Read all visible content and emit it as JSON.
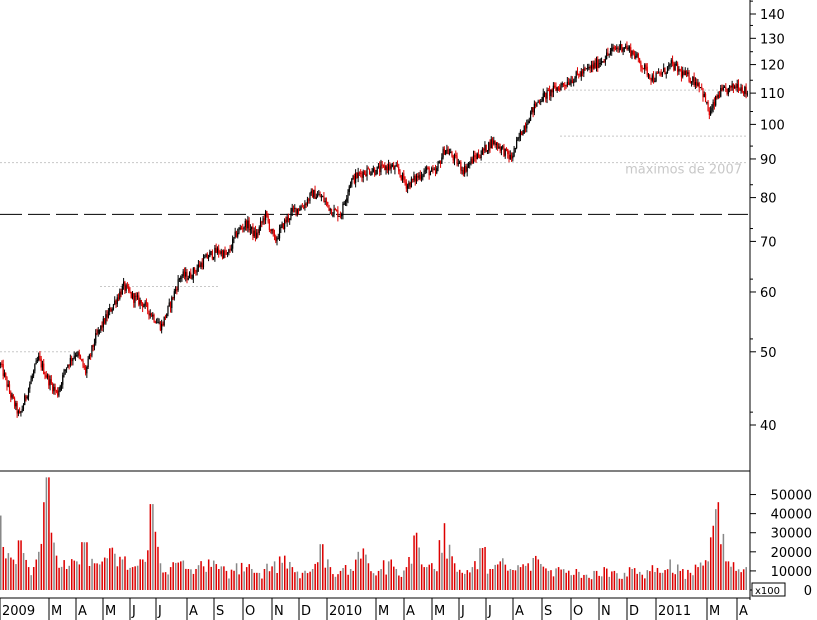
{
  "chart_data": [
    {
      "type": "candlestick",
      "scale": "log",
      "ylim": [
        34,
        145
      ],
      "y_ticks": [
        40,
        50,
        60,
        70,
        80,
        90,
        100,
        110,
        120,
        130,
        140
      ],
      "x_labels": [
        "2009",
        "M",
        "A",
        "M",
        "J",
        "J",
        "A",
        "S",
        "O",
        "N",
        "D",
        "2010",
        "M",
        "A",
        "M",
        "J",
        "J",
        "A",
        "S",
        "O",
        "N",
        "D",
        "2011",
        "M",
        "A"
      ],
      "close_series": [
        [
          0,
          48
        ],
        [
          1,
          44
        ],
        [
          2,
          41
        ],
        [
          3,
          45
        ],
        [
          4,
          49
        ],
        [
          5,
          46
        ],
        [
          6,
          44
        ],
        [
          7,
          48
        ],
        [
          8,
          50
        ],
        [
          9,
          47
        ],
        [
          10,
          52
        ],
        [
          11,
          55
        ],
        [
          12,
          58
        ],
        [
          13,
          61
        ],
        [
          14,
          59
        ],
        [
          15,
          58
        ],
        [
          16,
          56
        ],
        [
          17,
          54
        ],
        [
          18,
          58
        ],
        [
          19,
          63
        ],
        [
          20,
          63
        ],
        [
          21,
          65
        ],
        [
          22,
          67
        ],
        [
          23,
          68
        ],
        [
          24,
          67
        ],
        [
          25,
          72
        ],
        [
          26,
          74
        ],
        [
          27,
          71
        ],
        [
          28,
          76
        ],
        [
          29,
          70
        ],
        [
          30,
          74
        ],
        [
          31,
          77
        ],
        [
          32,
          78
        ],
        [
          33,
          81
        ],
        [
          34,
          80
        ],
        [
          35,
          77
        ],
        [
          36,
          76
        ],
        [
          37,
          84
        ],
        [
          38,
          86
        ],
        [
          39,
          87
        ],
        [
          40,
          87
        ],
        [
          41,
          88
        ],
        [
          42,
          87
        ],
        [
          43,
          83
        ],
        [
          44,
          85
        ],
        [
          45,
          87
        ],
        [
          46,
          86
        ],
        [
          47,
          93
        ],
        [
          48,
          90
        ],
        [
          49,
          87
        ],
        [
          50,
          90
        ],
        [
          51,
          92
        ],
        [
          52,
          95
        ],
        [
          53,
          93
        ],
        [
          54,
          90
        ],
        [
          55,
          97
        ],
        [
          56,
          103
        ],
        [
          57,
          108
        ],
        [
          58,
          110
        ],
        [
          59,
          112
        ],
        [
          60,
          114
        ],
        [
          61,
          116
        ],
        [
          62,
          118
        ],
        [
          63,
          120
        ],
        [
          64,
          123
        ],
        [
          65,
          126
        ],
        [
          66,
          127
        ],
        [
          67,
          124
        ],
        [
          68,
          119
        ],
        [
          69,
          115
        ],
        [
          70,
          117
        ],
        [
          71,
          120
        ],
        [
          72,
          117
        ],
        [
          73,
          115
        ],
        [
          74,
          113
        ],
        [
          75,
          103
        ],
        [
          76,
          110
        ],
        [
          77,
          111
        ],
        [
          78,
          113
        ],
        [
          79,
          110
        ]
      ],
      "candle_dates_visible": [
        "2009-01",
        "2011-04"
      ],
      "reference_levels": [
        {
          "value": 89,
          "style": "dotted",
          "label": "máximos de 2007"
        },
        {
          "value": 76,
          "style": "dashed",
          "label": ""
        },
        {
          "value": 96.5,
          "style": "dotted",
          "label": ""
        },
        {
          "value": 111,
          "style": "dotted",
          "label": ""
        },
        {
          "value": 50,
          "style": "dotted",
          "label": ""
        },
        {
          "value": 61,
          "style": "dotted",
          "label": ""
        }
      ],
      "candle_colors": {
        "up": "#000000",
        "down": "#dd0000"
      }
    },
    {
      "type": "bar",
      "name": "volume",
      "unit_label": "x100",
      "ylim": [
        0,
        60000
      ],
      "y_ticks": [
        0,
        10000,
        20000,
        30000,
        40000,
        50000
      ],
      "values": [
        39000,
        17000,
        26000,
        12000,
        20000,
        59000,
        18000,
        11000,
        15000,
        25000,
        14000,
        17000,
        19000,
        16000,
        12000,
        16000,
        45000,
        14000,
        12000,
        15000,
        11000,
        13000,
        16000,
        11000,
        10000,
        14000,
        12000,
        9000,
        11000,
        15000,
        18000,
        12000,
        9000,
        11000,
        24000,
        12000,
        10000,
        11000,
        20000,
        14000,
        10000,
        15000,
        11000,
        12000,
        30000,
        12000,
        11000,
        35000,
        14000,
        9000,
        12000,
        22000,
        11000,
        15000,
        11000,
        12000,
        14000,
        16000,
        10000,
        12000,
        9000,
        11000,
        8000,
        10000,
        12000,
        10000,
        9000,
        11000,
        8000,
        13000,
        9000,
        16000,
        10000,
        9000,
        12000,
        15000,
        46000,
        15000,
        10000,
        12000
      ],
      "bar_colors": [
        "#dd0000",
        "#888888"
      ]
    }
  ]
}
